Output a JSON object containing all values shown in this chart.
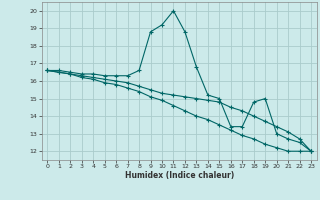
{
  "xlabel": "Humidex (Indice chaleur)",
  "bg_color": "#cceaea",
  "grid_color": "#aacccc",
  "line_color": "#006666",
  "xlim": [
    -0.5,
    23.5
  ],
  "ylim": [
    11.5,
    20.5
  ],
  "xticks": [
    0,
    1,
    2,
    3,
    4,
    5,
    6,
    7,
    8,
    9,
    10,
    11,
    12,
    13,
    14,
    15,
    16,
    17,
    18,
    19,
    20,
    21,
    22,
    23
  ],
  "yticks": [
    12,
    13,
    14,
    15,
    16,
    17,
    18,
    19,
    20
  ],
  "lines": [
    {
      "x": [
        0,
        1,
        2,
        3,
        4,
        5,
        6,
        7,
        8,
        9,
        10,
        11,
        12,
        13,
        14,
        15,
        16,
        17,
        18,
        19,
        20,
        21,
        22,
        23
      ],
      "y": [
        16.6,
        16.6,
        16.5,
        16.4,
        16.4,
        16.3,
        16.3,
        16.3,
        16.6,
        18.8,
        19.2,
        20.0,
        18.8,
        16.8,
        15.2,
        15.0,
        13.4,
        13.4,
        14.8,
        15.0,
        13.0,
        12.7,
        12.5,
        12.0
      ]
    },
    {
      "x": [
        0,
        1,
        2,
        3,
        4,
        5,
        6,
        7,
        8,
        9,
        10,
        11,
        12,
        13,
        14,
        15,
        16,
        17,
        18,
        19,
        20,
        21,
        22,
        23
      ],
      "y": [
        16.6,
        16.5,
        16.4,
        16.3,
        16.2,
        16.1,
        16.0,
        15.9,
        15.7,
        15.5,
        15.3,
        15.2,
        15.1,
        15.0,
        14.9,
        14.8,
        14.5,
        14.3,
        14.0,
        13.7,
        13.4,
        13.1,
        12.7,
        12.0
      ]
    },
    {
      "x": [
        0,
        1,
        2,
        3,
        4,
        5,
        6,
        7,
        8,
        9,
        10,
        11,
        12,
        13,
        14,
        15,
        16,
        17,
        18,
        19,
        20,
        21,
        22,
        23
      ],
      "y": [
        16.6,
        16.5,
        16.4,
        16.2,
        16.1,
        15.9,
        15.8,
        15.6,
        15.4,
        15.1,
        14.9,
        14.6,
        14.3,
        14.0,
        13.8,
        13.5,
        13.2,
        12.9,
        12.7,
        12.4,
        12.2,
        12.0,
        12.0,
        12.0
      ]
    }
  ]
}
